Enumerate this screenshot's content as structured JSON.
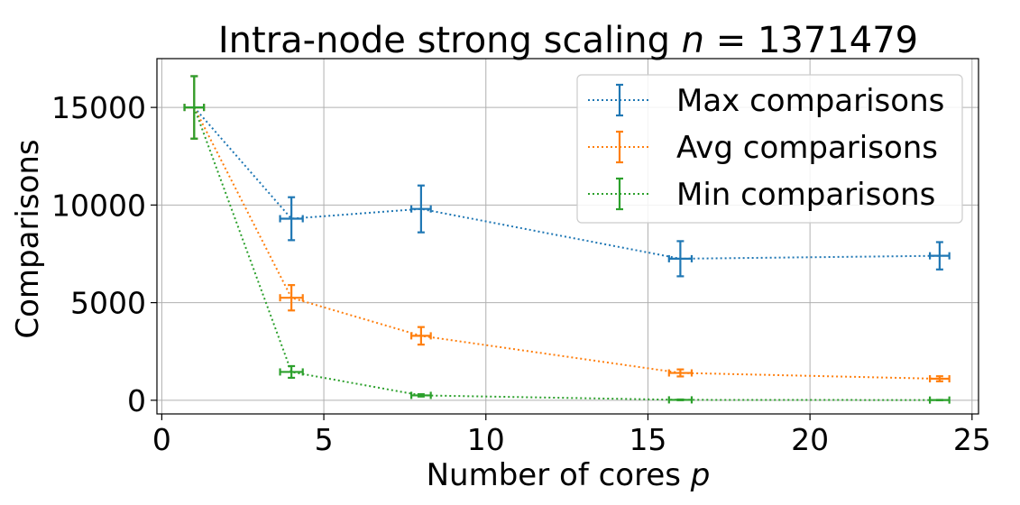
{
  "chart_data": {
    "type": "line",
    "title": "Intra-node strong scaling",
    "title_math": {
      "var": "n",
      "eq": " = ",
      "value": "1371479"
    },
    "xlabel": "Number of cores",
    "xlabel_var": "p",
    "ylabel": "Comparisons",
    "xlim": [
      -0.15,
      25.2
    ],
    "ylim": [
      -700,
      17500
    ],
    "x_ticks": [
      0,
      5,
      10,
      15,
      20,
      25
    ],
    "x_tick_labels": [
      "0",
      "5",
      "10",
      "15",
      "20",
      "25"
    ],
    "y_ticks": [
      0,
      5000,
      10000,
      15000
    ],
    "y_tick_labels": [
      "0",
      "5000",
      "10000",
      "15000"
    ],
    "grid": true,
    "legend_position": "upper right",
    "line_style": "dotted",
    "error_bars": true,
    "x": [
      1,
      4,
      8,
      16,
      24
    ],
    "series": [
      {
        "name": "Max comparisons",
        "color": "#1f77b4",
        "values": [
          15000,
          9300,
          9800,
          7250,
          7400
        ],
        "y_err": [
          1600,
          1100,
          1200,
          900,
          700
        ],
        "x_err": [
          0.3,
          0.35,
          0.3,
          0.35,
          0.3
        ]
      },
      {
        "name": "Avg comparisons",
        "color": "#ff7f0e",
        "values": [
          15000,
          5250,
          3300,
          1400,
          1100
        ],
        "y_err": [
          1600,
          650,
          450,
          180,
          130
        ],
        "x_err": [
          0.3,
          0.35,
          0.3,
          0.35,
          0.3
        ]
      },
      {
        "name": "Min comparisons",
        "color": "#2ca02c",
        "values": [
          15000,
          1450,
          250,
          20,
          10
        ],
        "y_err": [
          1600,
          300,
          60,
          20,
          10
        ],
        "x_err": [
          0.3,
          0.35,
          0.3,
          0.35,
          0.3
        ]
      }
    ]
  }
}
